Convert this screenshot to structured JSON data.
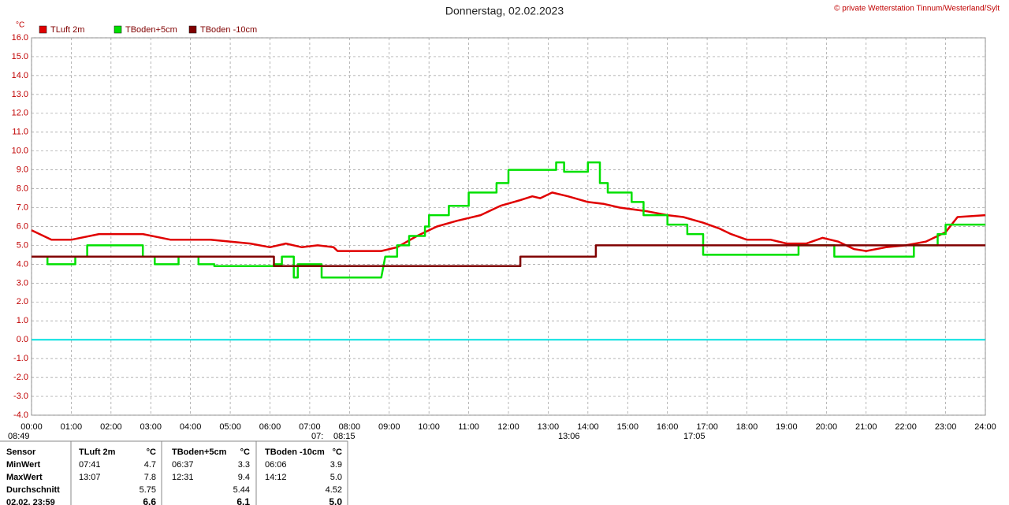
{
  "chart_data": {
    "type": "line",
    "title": "Donnerstag, 02.02.2023",
    "copyright": "© private Wetterstation Tinnum/Westerland/Sylt",
    "y_unit": "°C",
    "grid": true,
    "xlim": [
      0,
      24
    ],
    "ylim": [
      -4,
      16
    ],
    "xticks": [
      {
        "value": 0,
        "label": "00:00"
      },
      {
        "value": 1,
        "label": "01:00"
      },
      {
        "value": 2,
        "label": "02:00"
      },
      {
        "value": 3,
        "label": "03:00"
      },
      {
        "value": 4,
        "label": "04:00"
      },
      {
        "value": 5,
        "label": "05:00"
      },
      {
        "value": 6,
        "label": "06:00"
      },
      {
        "value": 7,
        "label": "07:00"
      },
      {
        "value": 8,
        "label": "08:00"
      },
      {
        "value": 9,
        "label": "09:00"
      },
      {
        "value": 10,
        "label": "10:00"
      },
      {
        "value": 11,
        "label": "11:00"
      },
      {
        "value": 12,
        "label": "12:00"
      },
      {
        "value": 13,
        "label": "13:00"
      },
      {
        "value": 14,
        "label": "14:00"
      },
      {
        "value": 15,
        "label": "15:00"
      },
      {
        "value": 16,
        "label": "16:00"
      },
      {
        "value": 17,
        "label": "17:00"
      },
      {
        "value": 18,
        "label": "18:00"
      },
      {
        "value": 19,
        "label": "19:00"
      },
      {
        "value": 20,
        "label": "20:00"
      },
      {
        "value": 21,
        "label": "21:00"
      },
      {
        "value": 22,
        "label": "22:00"
      },
      {
        "value": 23,
        "label": "23:00"
      },
      {
        "value": 24,
        "label": "24:00"
      }
    ],
    "yticks": [
      {
        "value": 16,
        "label": "16.0"
      },
      {
        "value": 15,
        "label": "15.0"
      },
      {
        "value": 14,
        "label": "14.0"
      },
      {
        "value": 13,
        "label": "13.0"
      },
      {
        "value": 12,
        "label": "12.0"
      },
      {
        "value": 11,
        "label": "11.0"
      },
      {
        "value": 10,
        "label": "10.0"
      },
      {
        "value": 9,
        "label": "9.0"
      },
      {
        "value": 8,
        "label": "8.0"
      },
      {
        "value": 7,
        "label": "7.0"
      },
      {
        "value": 6,
        "label": "6.0"
      },
      {
        "value": 5,
        "label": "5.0"
      },
      {
        "value": 4,
        "label": "4.0"
      },
      {
        "value": 3,
        "label": "3.0"
      },
      {
        "value": 2,
        "label": "2.0"
      },
      {
        "value": 1,
        "label": "1.0"
      },
      {
        "value": 0,
        "label": "0.0"
      },
      {
        "value": -1,
        "label": "-1.0"
      },
      {
        "value": -2,
        "label": "-2.0"
      },
      {
        "value": -3,
        "label": "-3.0"
      },
      {
        "value": -4,
        "label": "-4.0"
      }
    ],
    "zero_line": {
      "value": 0,
      "color": "#00e0e0"
    },
    "series": [
      {
        "name": "TLuft 2m",
        "color": "#e00000",
        "x": [
          0,
          0.5,
          1.0,
          1.7,
          2.8,
          3.5,
          4.5,
          5.5,
          6.0,
          6.4,
          6.8,
          7.2,
          7.6,
          7.7,
          8.8,
          9.2,
          9.7,
          10.2,
          10.7,
          11.3,
          11.8,
          12.3,
          12.6,
          12.8,
          13.1,
          13.5,
          14.0,
          14.4,
          14.8,
          15.5,
          16.0,
          16.4,
          16.9,
          17.3,
          17.6,
          18.0,
          18.6,
          19.0,
          19.5,
          19.9,
          20.3,
          20.7,
          21.0,
          21.5,
          22.0,
          22.5,
          23.0,
          23.3,
          24
        ],
        "values": [
          5.8,
          5.3,
          5.3,
          5.6,
          5.6,
          5.3,
          5.3,
          5.1,
          4.9,
          5.1,
          4.9,
          5.0,
          4.9,
          4.7,
          4.7,
          4.9,
          5.5,
          6.0,
          6.3,
          6.6,
          7.1,
          7.4,
          7.6,
          7.5,
          7.8,
          7.6,
          7.3,
          7.2,
          7.0,
          6.8,
          6.6,
          6.5,
          6.2,
          5.9,
          5.6,
          5.3,
          5.3,
          5.1,
          5.1,
          5.4,
          5.2,
          4.8,
          4.7,
          4.9,
          5.0,
          5.2,
          5.7,
          6.5,
          6.6
        ]
      },
      {
        "name": "TBoden+5cm",
        "color": "#00e000",
        "x": [
          0,
          0.4,
          0.4,
          1.1,
          1.1,
          1.4,
          1.4,
          2.8,
          2.8,
          3.1,
          3.1,
          3.7,
          3.7,
          4.2,
          4.2,
          4.6,
          4.6,
          6.1,
          6.1,
          6.3,
          6.3,
          6.6,
          6.6,
          6.7,
          6.7,
          7.3,
          7.3,
          8.8,
          8.9,
          9.2,
          9.2,
          9.5,
          9.5,
          9.9,
          9.9,
          10.0,
          10.0,
          10.5,
          10.5,
          11.0,
          11.0,
          11.7,
          11.7,
          12.0,
          12.0,
          13.2,
          13.2,
          13.4,
          13.4,
          14.0,
          14.0,
          14.3,
          14.3,
          14.5,
          14.5,
          15.1,
          15.1,
          15.4,
          15.4,
          16.0,
          16.0,
          16.5,
          16.5,
          16.9,
          16.9,
          19.3,
          19.3,
          20.2,
          20.2,
          22.2,
          22.2,
          22.8,
          22.8,
          23.0,
          23.0,
          24
        ],
        "values": [
          4.4,
          4.4,
          4.0,
          4.0,
          4.4,
          4.4,
          5.0,
          5.0,
          4.4,
          4.4,
          4.0,
          4.0,
          4.4,
          4.4,
          4.0,
          4.0,
          3.9,
          3.9,
          4.0,
          4.0,
          4.4,
          4.4,
          3.3,
          3.3,
          4.0,
          4.0,
          3.3,
          3.3,
          4.4,
          4.4,
          5.0,
          5.0,
          5.5,
          5.5,
          6.0,
          6.0,
          6.6,
          6.6,
          7.1,
          7.1,
          7.8,
          7.8,
          8.3,
          8.3,
          9.0,
          9.0,
          9.4,
          9.4,
          8.9,
          8.9,
          9.4,
          9.4,
          8.3,
          8.3,
          7.8,
          7.8,
          7.3,
          7.3,
          6.6,
          6.6,
          6.1,
          6.1,
          5.6,
          5.6,
          4.5,
          4.5,
          5.0,
          5.0,
          4.4,
          4.4,
          5.0,
          5.0,
          5.6,
          5.6,
          6.1,
          6.1
        ]
      },
      {
        "name": "TBoden -10cm",
        "color": "#800000",
        "x": [
          0,
          6.1,
          6.1,
          12.3,
          12.3,
          14.2,
          14.2,
          24
        ],
        "values": [
          4.4,
          4.4,
          3.9,
          3.9,
          4.4,
          4.4,
          5.0,
          5.0
        ]
      }
    ],
    "sun_labels": [
      "08:49",
      "07:",
      "08:15",
      "13:06",
      "17:05"
    ]
  },
  "table": {
    "header": [
      "Sensor",
      "TLuft 2m",
      "°C",
      "TBoden+5cm",
      "°C",
      "TBoden -10cm",
      "°C"
    ],
    "rows": [
      [
        "MinWert",
        "07:41",
        "4.7",
        "06:37",
        "3.3",
        "06:06",
        "3.9"
      ],
      [
        "MaxWert",
        "13:07",
        "7.8",
        "12:31",
        "9.4",
        "14:12",
        "5.0"
      ],
      [
        "Durchschnitt",
        null,
        "5.75",
        null,
        "5.44",
        null,
        "4.52"
      ],
      [
        "02.02. 23:59",
        null,
        "6.6",
        null,
        "6.1",
        null,
        "5.0"
      ]
    ]
  }
}
